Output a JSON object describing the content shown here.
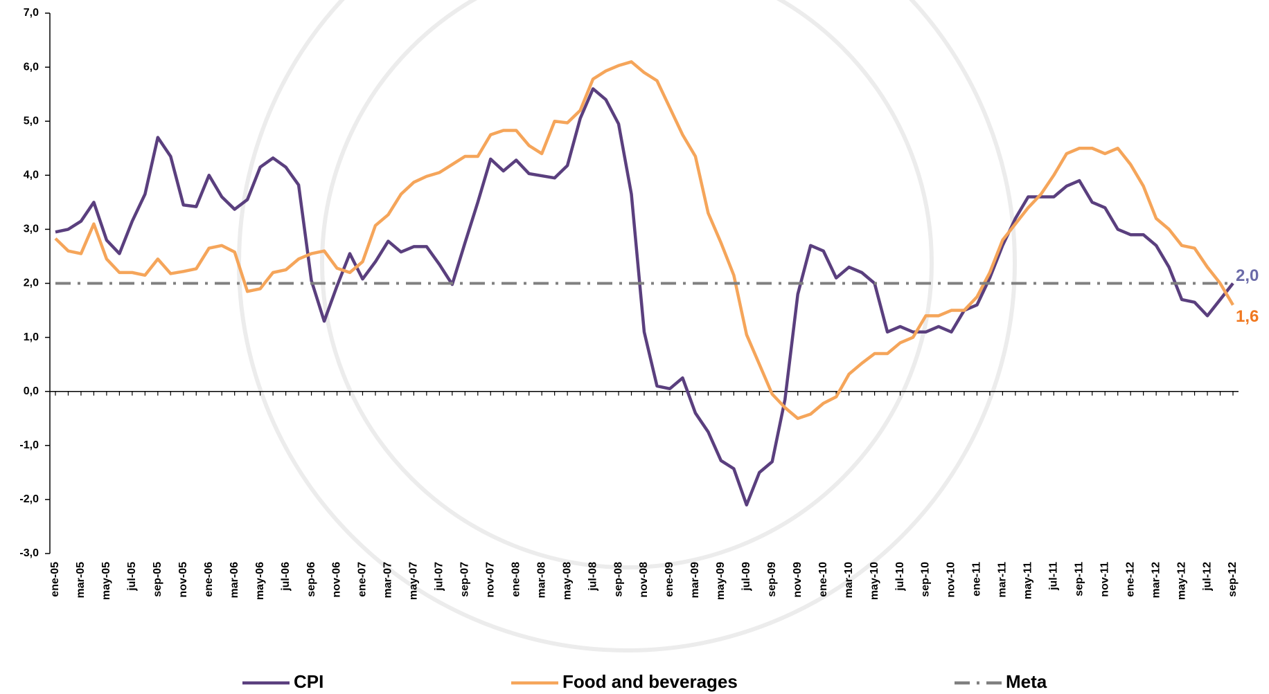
{
  "chart_data": {
    "type": "line",
    "categories": [
      "ene-05",
      null,
      "mar-05",
      null,
      "may-05",
      null,
      "jul-05",
      null,
      "sep-05",
      null,
      "nov-05",
      null,
      "ene-06",
      null,
      "mar-06",
      null,
      "may-06",
      null,
      "jul-06",
      null,
      "sep-06",
      null,
      "nov-06",
      null,
      "ene-07",
      null,
      "mar-07",
      null,
      "may-07",
      null,
      "jul-07",
      null,
      "sep-07",
      null,
      "nov-07",
      null,
      "ene-08",
      null,
      "mar-08",
      null,
      "may-08",
      null,
      "jul-08",
      null,
      "sep-08",
      null,
      "nov-08",
      null,
      "ene-09",
      null,
      "mar-09",
      null,
      "may-09",
      null,
      "jul-09",
      null,
      "sep-09",
      null,
      "nov-09",
      null,
      "ene-10",
      null,
      "mar-10",
      null,
      "may-10",
      null,
      "jul-10",
      null,
      "sep-10",
      null,
      "nov-10",
      null,
      "ene-11",
      null,
      "mar-11",
      null,
      "may-11",
      null,
      "jul-11",
      null,
      "sep-11",
      null,
      "nov-11",
      null,
      "ene-12",
      null,
      "mar-12",
      null,
      "may-12",
      null,
      "jul-12",
      null,
      "sep-12"
    ],
    "series": [
      {
        "name": "CPI",
        "color": "#5a3f7e",
        "end_label": "2,0",
        "end_label_color": "#6b6ba8",
        "values": [
          2.95,
          3.0,
          3.15,
          3.5,
          2.8,
          2.55,
          3.15,
          3.65,
          4.7,
          4.35,
          3.45,
          3.42,
          4.0,
          3.6,
          3.37,
          3.55,
          4.15,
          4.32,
          4.15,
          3.82,
          2.05,
          1.3,
          1.95,
          2.55,
          2.08,
          2.4,
          2.78,
          2.58,
          2.68,
          2.68,
          2.35,
          1.98,
          2.75,
          3.5,
          4.3,
          4.08,
          4.28,
          4.03,
          3.99,
          3.95,
          4.18,
          5.05,
          5.6,
          5.4,
          4.95,
          3.65,
          1.1,
          0.1,
          0.05,
          0.25,
          -0.4,
          -0.75,
          -1.28,
          -1.43,
          -2.1,
          -1.5,
          -1.3,
          -0.15,
          1.8,
          2.7,
          2.6,
          2.1,
          2.3,
          2.2,
          2.0,
          1.1,
          1.2,
          1.1,
          1.1,
          1.2,
          1.1,
          1.5,
          1.6,
          2.1,
          2.7,
          3.2,
          3.6,
          3.6,
          3.6,
          3.8,
          3.9,
          3.5,
          3.4,
          3.0,
          2.9,
          2.9,
          2.7,
          2.3,
          1.7,
          1.65,
          1.4,
          1.7,
          2.0
        ]
      },
      {
        "name": "Food and beverages",
        "color": "#f5a55a",
        "end_label": "1,6",
        "end_label_color": "#f07820",
        "values": [
          2.83,
          2.6,
          2.55,
          3.1,
          2.45,
          2.2,
          2.2,
          2.15,
          2.45,
          2.18,
          2.22,
          2.27,
          2.65,
          2.7,
          2.58,
          1.85,
          1.9,
          2.2,
          2.25,
          2.45,
          2.55,
          2.6,
          2.28,
          2.2,
          2.4,
          3.07,
          3.27,
          3.65,
          3.87,
          3.98,
          4.05,
          4.2,
          4.35,
          4.35,
          4.75,
          4.83,
          4.83,
          4.55,
          4.4,
          5.0,
          4.97,
          5.2,
          5.78,
          5.93,
          6.03,
          6.1,
          5.9,
          5.75,
          5.25,
          4.75,
          4.35,
          3.3,
          2.75,
          2.15,
          1.05,
          0.5,
          -0.05,
          -0.3,
          -0.5,
          -0.42,
          -0.22,
          -0.1,
          0.32,
          0.52,
          0.7,
          0.7,
          0.9,
          1.0,
          1.4,
          1.4,
          1.5,
          1.5,
          1.75,
          2.2,
          2.8,
          3.1,
          3.4,
          3.65,
          4.0,
          4.4,
          4.5,
          4.5,
          4.4,
          4.5,
          4.2,
          3.8,
          3.2,
          3.0,
          2.7,
          2.65,
          2.3,
          2.0,
          1.6
        ]
      },
      {
        "name": "Meta",
        "color": "#808080",
        "dash": "dashdot",
        "values": [
          2,
          2,
          2,
          2,
          2,
          2,
          2,
          2,
          2,
          2,
          2,
          2,
          2,
          2,
          2,
          2,
          2,
          2,
          2,
          2,
          2,
          2,
          2,
          2,
          2,
          2,
          2,
          2,
          2,
          2,
          2,
          2,
          2,
          2,
          2,
          2,
          2,
          2,
          2,
          2,
          2,
          2,
          2,
          2,
          2,
          2,
          2,
          2,
          2,
          2,
          2,
          2,
          2,
          2,
          2,
          2,
          2,
          2,
          2,
          2,
          2,
          2,
          2,
          2,
          2,
          2,
          2,
          2,
          2,
          2,
          2,
          2,
          2,
          2,
          2,
          2,
          2,
          2,
          2,
          2,
          2,
          2,
          2,
          2,
          2,
          2,
          2,
          2,
          2,
          2,
          2,
          2,
          2
        ]
      }
    ],
    "ylim": [
      -3,
      7
    ],
    "yticks": [
      {
        "value": -3,
        "label": "-3,0"
      },
      {
        "value": -2,
        "label": "-2,0"
      },
      {
        "value": -1,
        "label": "-1,0"
      },
      {
        "value": 0,
        "label": "0,0"
      },
      {
        "value": 1,
        "label": "1,0"
      },
      {
        "value": 2,
        "label": "2,0"
      },
      {
        "value": 3,
        "label": "3,0"
      },
      {
        "value": 4,
        "label": "4,0"
      },
      {
        "value": 5,
        "label": "5,0"
      },
      {
        "value": 6,
        "label": "6,0"
      },
      {
        "value": 7,
        "label": "7,0"
      }
    ],
    "legend": "bottom"
  }
}
